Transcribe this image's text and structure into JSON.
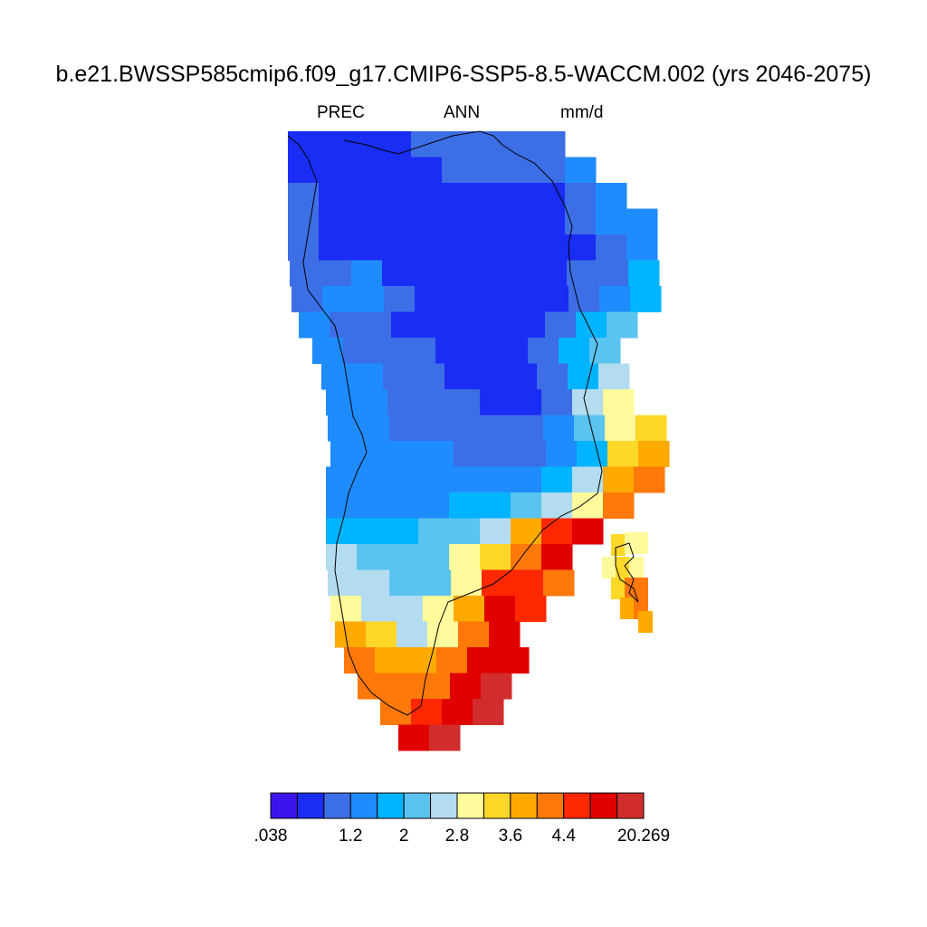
{
  "title": "b.e21.BWSSP585cmip6.f09_g17.CMIP6-SSP5-8.5-WACCM.002 (yrs 2046-2075)",
  "variable": "PREC",
  "season": "ANN",
  "units": "mm/d",
  "colorbar": {
    "colors": [
      "#3c14f0",
      "#1a2df5",
      "#3c6ee6",
      "#1e8cff",
      "#00b4ff",
      "#5ac3f0",
      "#b4dcf0",
      "#fffa9b",
      "#ffd728",
      "#ffaa00",
      "#ff780a",
      "#ff2800",
      "#e10000",
      "#d22d2d"
    ],
    "labels": [
      ".038",
      "1.2",
      "2",
      "2.8",
      "3.6",
      "4.4",
      "20.269"
    ],
    "label_bin_edges": [
      0,
      3,
      5,
      7,
      9,
      11,
      14
    ]
  },
  "map_data": {
    "description_levels": "index into colorbar.colors per grid cell",
    "grid": {
      "rows": [
        {
          "lat": 83,
          "cells": [
            1,
            1,
            1,
            1,
            2,
            2,
            2,
            2,
            2
          ]
        },
        {
          "lat": 82,
          "cells": [
            1,
            1,
            1,
            1,
            1,
            2,
            2,
            2,
            2,
            3
          ]
        },
        {
          "lat": 81,
          "cells": [
            2,
            1,
            1,
            1,
            1,
            1,
            1,
            1,
            1,
            2,
            3
          ]
        },
        {
          "lat": 80,
          "cells": [
            2,
            1,
            1,
            1,
            1,
            1,
            1,
            1,
            1,
            2,
            3,
            3
          ]
        },
        {
          "lat": 79,
          "cells": [
            2,
            1,
            1,
            1,
            1,
            1,
            1,
            1,
            1,
            1,
            2,
            3
          ]
        },
        {
          "lat": 78,
          "cells": [
            2,
            2,
            3,
            1,
            1,
            1,
            1,
            1,
            1,
            2,
            2,
            4
          ]
        },
        {
          "lat": 77,
          "cells": [
            2,
            3,
            3,
            2,
            1,
            1,
            1,
            1,
            1,
            2,
            3,
            4
          ]
        },
        {
          "lat": 76,
          "cells": [
            3,
            2,
            2,
            1,
            1,
            1,
            1,
            1,
            2,
            4,
            5
          ]
        },
        {
          "lat": 75,
          "cells": [
            3,
            2,
            2,
            2,
            1,
            1,
            1,
            2,
            4,
            5
          ]
        },
        {
          "lat": 74,
          "cells": [
            3,
            3,
            2,
            2,
            1,
            1,
            1,
            2,
            4,
            6
          ]
        },
        {
          "lat": 73,
          "cells": [
            3,
            3,
            2,
            2,
            2,
            1,
            1,
            2,
            6,
            7
          ]
        },
        {
          "lat": 72,
          "cells": [
            3,
            3,
            2,
            2,
            2,
            2,
            2,
            3,
            5,
            7,
            8
          ]
        },
        {
          "lat": 71,
          "cells": [
            3,
            3,
            3,
            3,
            2,
            2,
            2,
            3,
            4,
            8,
            9
          ]
        },
        {
          "lat": 70,
          "cells": [
            3,
            3,
            3,
            3,
            3,
            3,
            3,
            4,
            6,
            9,
            10
          ]
        },
        {
          "lat": 69,
          "cells": [
            3,
            3,
            3,
            3,
            4,
            4,
            5,
            6,
            7,
            10
          ]
        },
        {
          "lat": 68,
          "cells": [
            4,
            4,
            4,
            5,
            5,
            6,
            9,
            11,
            12
          ]
        },
        {
          "lat": 67,
          "cells": [
            6,
            5,
            5,
            5,
            7,
            8,
            10,
            12
          ]
        },
        {
          "lat": 66,
          "cells": [
            6,
            6,
            5,
            5,
            7,
            11,
            11,
            10
          ]
        },
        {
          "lat": 65,
          "cells": [
            7,
            6,
            6,
            7,
            9,
            12,
            11
          ]
        },
        {
          "lat": 64,
          "cells": [
            9,
            8,
            6,
            7,
            10,
            12
          ]
        },
        {
          "lat": 63,
          "cells": [
            10,
            9,
            9,
            10,
            12,
            12
          ]
        },
        {
          "lat": 62,
          "cells": [
            10,
            10,
            10,
            12,
            13
          ]
        },
        {
          "lat": 61,
          "cells": [
            10,
            11,
            12,
            13
          ]
        },
        {
          "lat": 60,
          "cells": [
            12,
            13
          ]
        }
      ]
    }
  }
}
